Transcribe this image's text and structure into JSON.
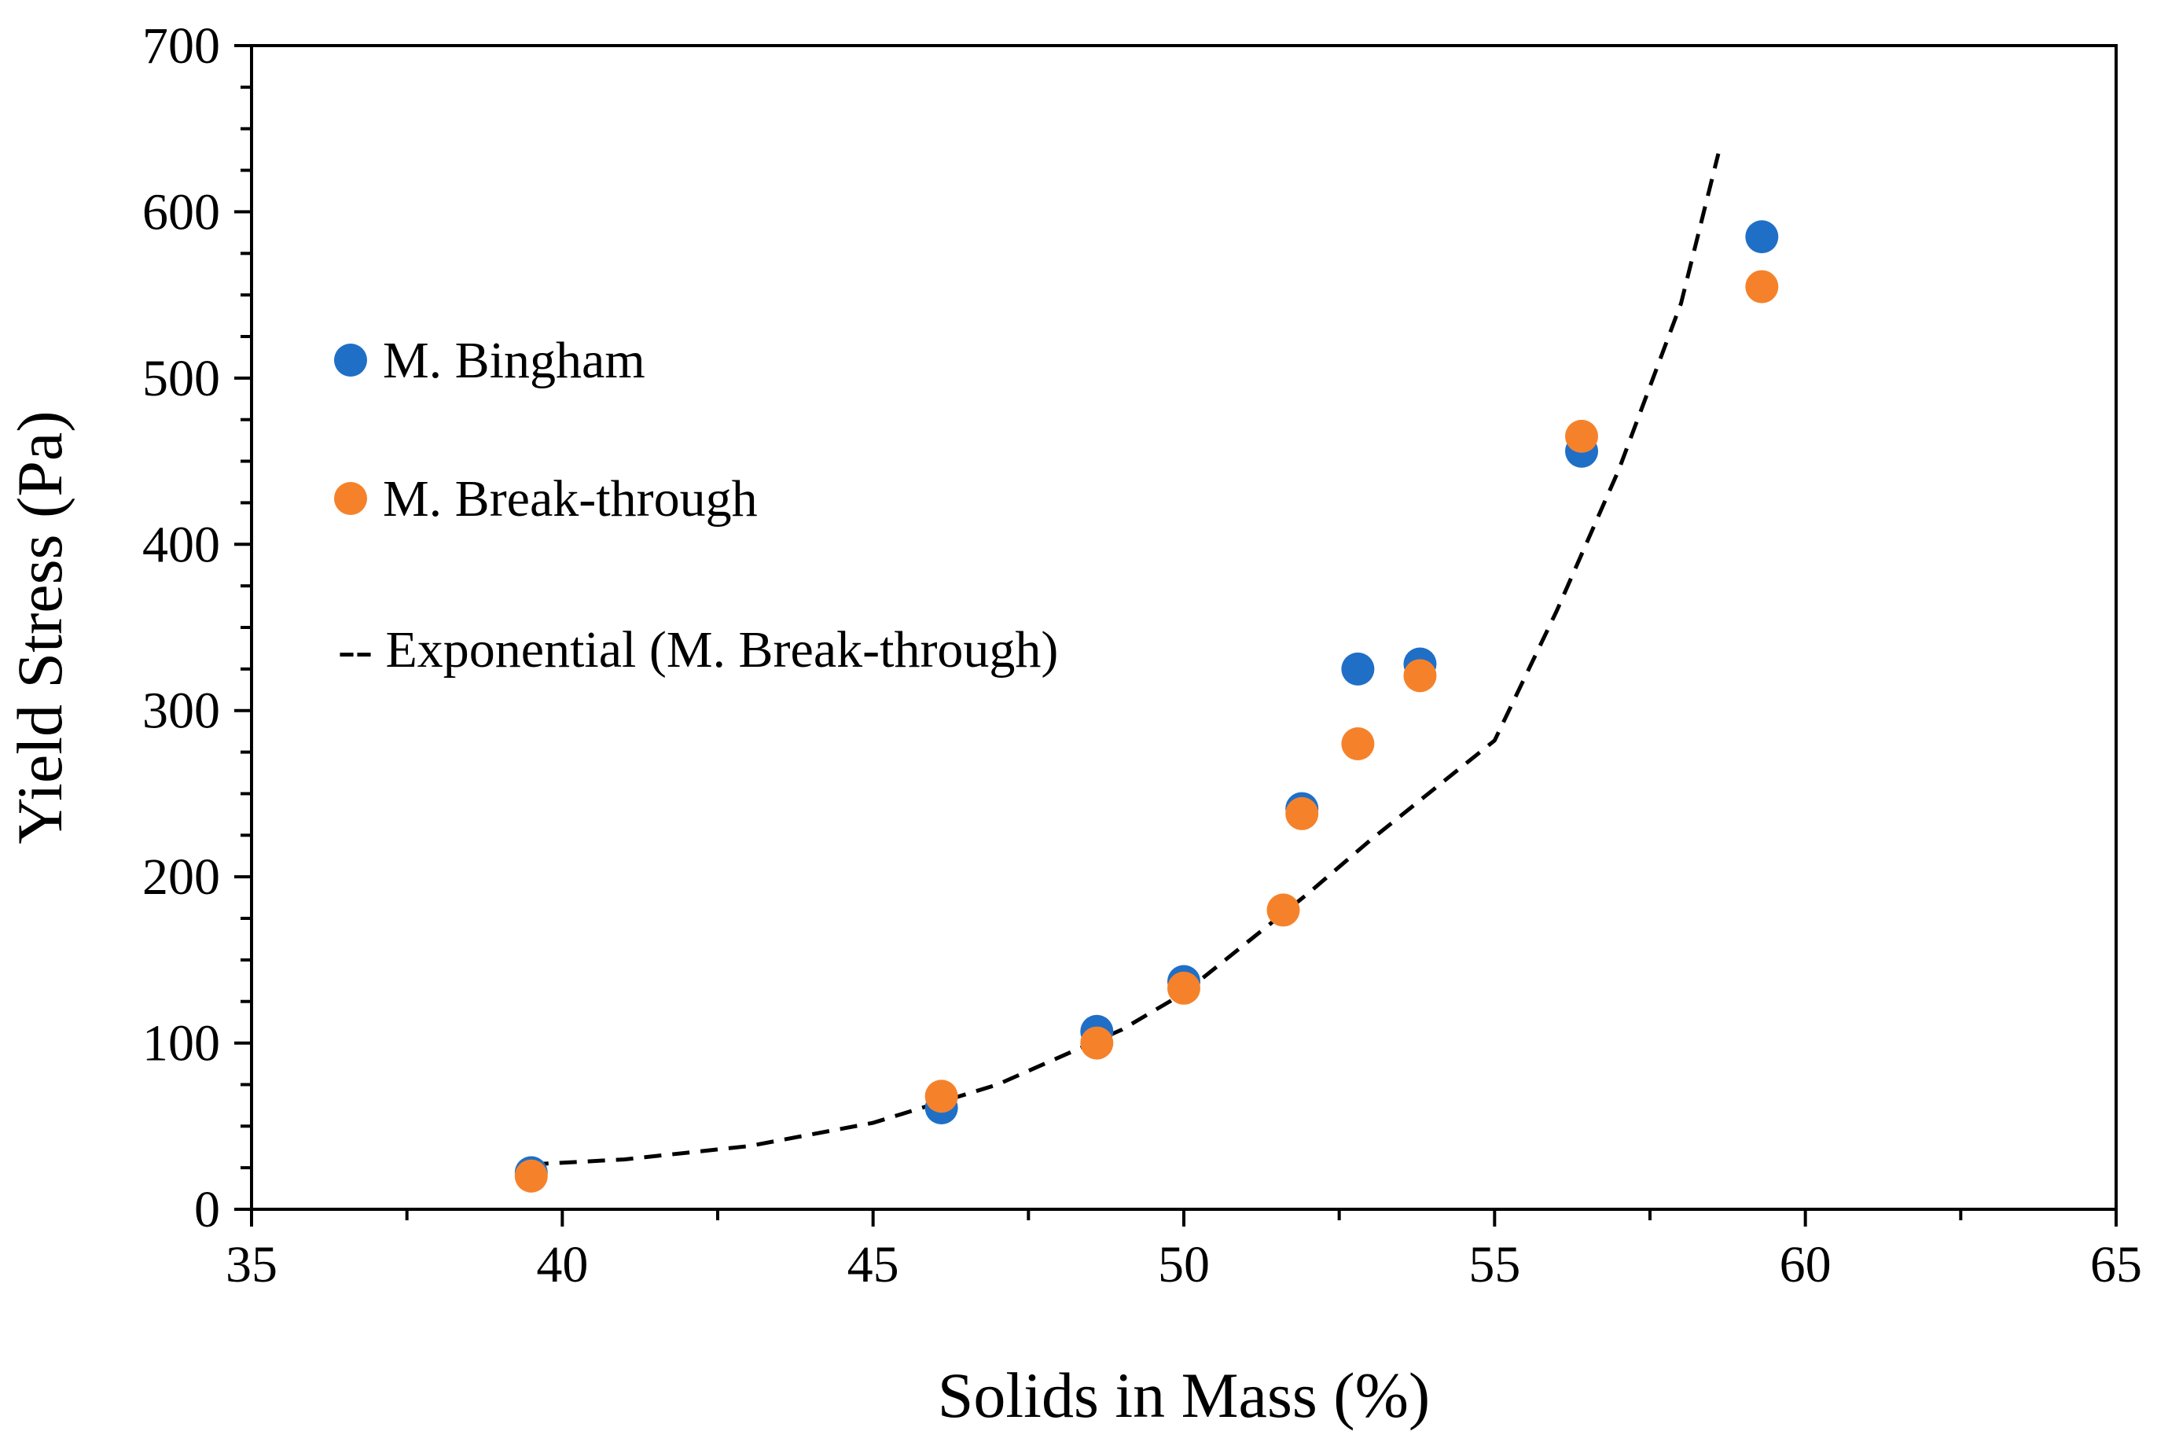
{
  "chart_data": {
    "type": "scatter",
    "title": "",
    "xlabel": "Solids in Mass (%)",
    "ylabel": "Yield Stress (Pa)",
    "xlim": [
      35,
      65
    ],
    "ylim": [
      0,
      700
    ],
    "x_ticks": [
      35,
      40,
      45,
      50,
      55,
      60,
      65
    ],
    "y_ticks": [
      0,
      100,
      200,
      300,
      400,
      500,
      600,
      700
    ],
    "x_tick_labels": [
      "35",
      "40",
      "45",
      "50",
      "55",
      "60",
      "65"
    ],
    "y_tick_labels": [
      "0",
      "100",
      "200",
      "300",
      "400",
      "500",
      "600",
      "700"
    ],
    "grid": false,
    "legend_position": "top-left",
    "series": [
      {
        "name": "M. Bingham",
        "legend_label": "M. Bingham",
        "color": "#1f6fc6",
        "marker": "circle",
        "x": [
          39.5,
          46.1,
          48.6,
          50.0,
          51.9,
          52.8,
          53.8,
          56.4,
          59.3
        ],
        "y": [
          22,
          61,
          107,
          137,
          241,
          325,
          328,
          456,
          585
        ]
      },
      {
        "name": "M. Break-through",
        "legend_label": "M. Break-through",
        "color": "#f5822b",
        "marker": "circle",
        "x": [
          39.5,
          46.1,
          48.6,
          50.0,
          51.6,
          51.9,
          52.8,
          53.8,
          56.4,
          59.3
        ],
        "y": [
          20,
          68,
          100,
          133,
          180,
          238,
          280,
          321,
          465,
          555
        ]
      }
    ],
    "trendline": {
      "name": "Exponential (M. Break-through)",
      "legend_label": "-- Exponential  (M. Break-through)",
      "color": "#000000",
      "style": "dashed",
      "x": [
        39.5,
        41,
        43,
        45,
        47,
        49,
        50,
        51,
        52,
        53,
        54,
        55,
        56,
        57,
        58,
        58.6
      ],
      "y": [
        27,
        30,
        38,
        52,
        75,
        108,
        130,
        160,
        190,
        222,
        252,
        282,
        360,
        445,
        545,
        635
      ]
    }
  }
}
